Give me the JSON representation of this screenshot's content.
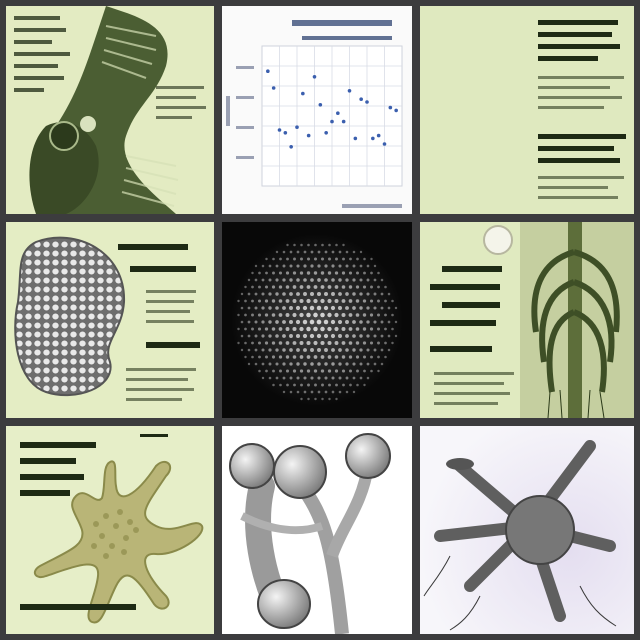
{
  "colors": {
    "frame": "#3c3c3e",
    "panel_green": "#e3ebc2",
    "organ_green": "#4b5e33",
    "chart_bg": "#fafafa",
    "sphere_bg": "#080808",
    "purple_bg": "#efedf5",
    "gray_structure": "#8a8a8a"
  },
  "tiles": [
    {
      "id": "skeletal-creature-panel"
    },
    {
      "id": "scatter-chart-panel"
    },
    {
      "id": "text-panel-top-right"
    },
    {
      "id": "bean-mesh-panel"
    },
    {
      "id": "dotted-sphere-panel"
    },
    {
      "id": "ribcage-panel"
    },
    {
      "id": "starfish-cell-panel"
    },
    {
      "id": "mushroom-sculpture-panel"
    },
    {
      "id": "gray-cluster-panel"
    }
  ],
  "chart_data": {
    "type": "scatter",
    "title": "",
    "xlabel": "",
    "ylabel": "",
    "grid": true,
    "points": [
      [
        1,
        82
      ],
      [
        2,
        70
      ],
      [
        3,
        40
      ],
      [
        4,
        38
      ],
      [
        5,
        28
      ],
      [
        6,
        42
      ],
      [
        7,
        66
      ],
      [
        8,
        36
      ],
      [
        9,
        78
      ],
      [
        10,
        58
      ],
      [
        11,
        38
      ],
      [
        12,
        46
      ],
      [
        13,
        52
      ],
      [
        14,
        46
      ],
      [
        15,
        68
      ],
      [
        16,
        34
      ],
      [
        17,
        62
      ],
      [
        18,
        60
      ],
      [
        19,
        34
      ],
      [
        20,
        36
      ],
      [
        21,
        30
      ],
      [
        22,
        56
      ],
      [
        23,
        54
      ]
    ],
    "xlim": [
      0,
      24
    ],
    "ylim": [
      0,
      100
    ]
  }
}
